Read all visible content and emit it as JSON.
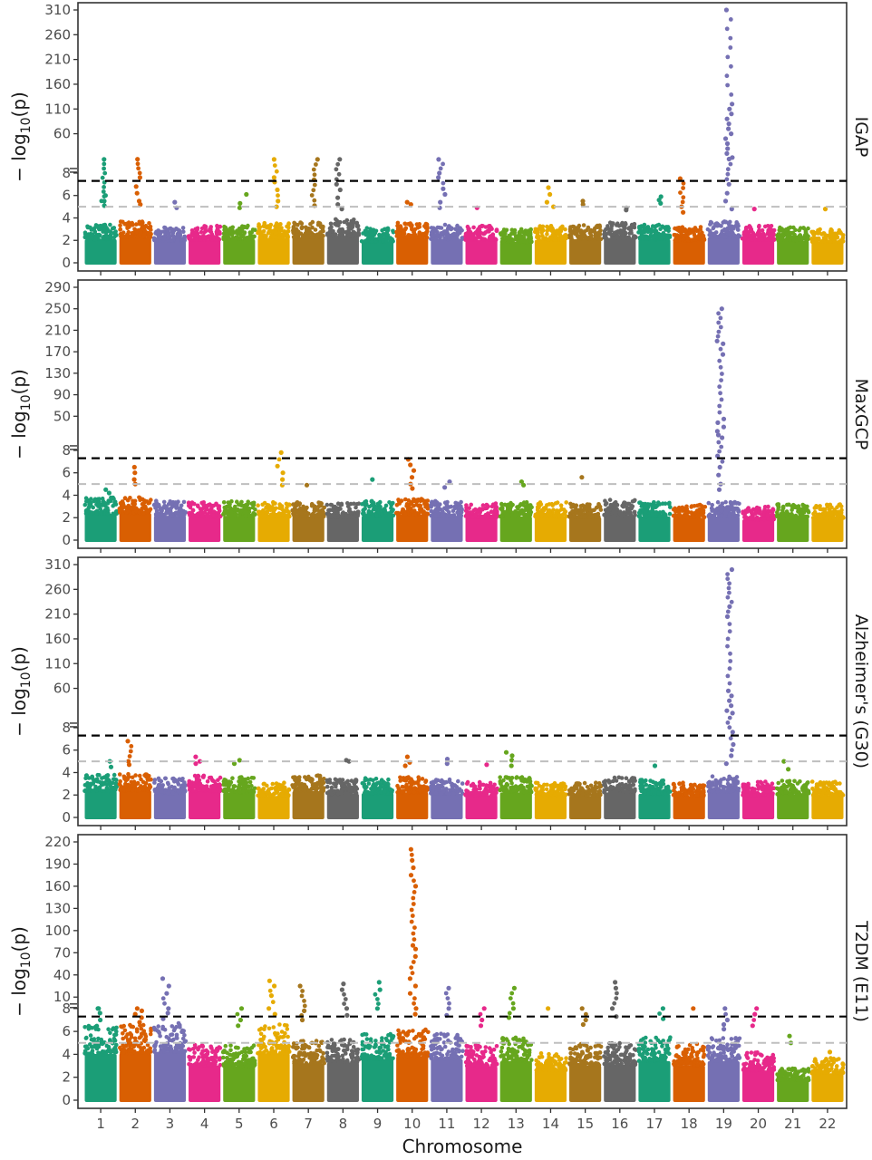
{
  "chart_data": {
    "type": "scatter",
    "subtype": "manhattan",
    "xlabel": "Chromosome",
    "ylabel": "− log10(p)",
    "ylabel_parts": {
      "main": "− log",
      "sub": "10",
      "arg": "(p)"
    },
    "chromosomes": [
      "1",
      "2",
      "3",
      "4",
      "5",
      "6",
      "7",
      "8",
      "9",
      "10",
      "11",
      "12",
      "13",
      "14",
      "15",
      "16",
      "17",
      "18",
      "19",
      "20",
      "21",
      "22"
    ],
    "chromosome_colors": [
      "#1b9e77",
      "#d95f02",
      "#7570b3",
      "#e7298a",
      "#66a61e",
      "#e6ab02",
      "#a6761d",
      "#666666"
    ],
    "genome_wide_threshold": 7.3,
    "suggestive_threshold": 5,
    "y_axis_break": 8,
    "panels": [
      {
        "name": "IGAP",
        "ticks_lower": [
          0,
          2,
          4,
          6,
          8
        ],
        "ticks_upper": [
          60,
          110,
          160,
          210,
          260,
          310
        ],
        "upper_range": [
          10,
          310
        ],
        "baseline_max": [
          3.4,
          3.7,
          3.2,
          3.3,
          3.4,
          3.6,
          3.7,
          3.9,
          3.1,
          3.6,
          3.4,
          3.3,
          3.0,
          3.3,
          3.4,
          3.6,
          3.4,
          3.2,
          3.7,
          3.3,
          3.2,
          3.0
        ],
        "peaks": [
          {
            "chr": 1,
            "values": [
              6.0,
              5.5,
              5.1,
              8.3
            ]
          },
          {
            "chr": 2,
            "values": [
              8.5,
              7.6,
              6.8,
              6.2,
              5.5,
              5.2
            ]
          },
          {
            "chr": 3,
            "values": [
              5.4,
              4.9
            ]
          },
          {
            "chr": 5,
            "values": [
              6.1,
              5.3,
              4.9
            ]
          },
          {
            "chr": 6,
            "values": [
              8.1,
              7.6,
              7.2,
              6.5,
              5.5,
              5.0
            ]
          },
          {
            "chr": 7,
            "values": [
              8.2,
              7.4,
              5.1
            ]
          },
          {
            "chr": 8,
            "values": [
              8.4,
              7.0,
              6.5,
              5.8,
              5.2,
              4.8
            ]
          },
          {
            "chr": 10,
            "values": [
              5.4,
              5.2
            ]
          },
          {
            "chr": 11,
            "values": [
              8.2,
              8.0,
              7.6,
              6.6,
              6.1,
              5.4,
              4.9
            ]
          },
          {
            "chr": 12,
            "values": [
              4.9
            ]
          },
          {
            "chr": 14,
            "values": [
              6.7,
              6.1,
              5.4,
              5.0
            ]
          },
          {
            "chr": 15,
            "values": [
              5.5,
              5.2
            ]
          },
          {
            "chr": 16,
            "values": [
              4.9,
              4.7
            ]
          },
          {
            "chr": 17,
            "values": [
              5.6,
              5.3,
              5.9
            ]
          },
          {
            "chr": 18,
            "values": [
              7.5,
              5.0,
              4.5
            ]
          },
          {
            "chr": 19,
            "values": [
              310,
              120,
              110,
              100,
              90,
              80,
              70,
              60,
              50,
              40,
              30,
              20,
              12,
              8.8,
              7.0,
              6.2,
              5.5,
              4.8
            ]
          },
          {
            "chr": 20,
            "values": [
              4.8
            ]
          },
          {
            "chr": 22,
            "values": [
              4.8
            ]
          }
        ]
      },
      {
        "name": "MaxGCP",
        "ticks_lower": [
          0,
          2,
          4,
          6,
          8
        ],
        "ticks_upper": [
          50,
          90,
          130,
          170,
          210,
          250,
          290
        ],
        "upper_range": [
          10,
          290
        ],
        "baseline_max": [
          3.8,
          3.9,
          3.5,
          3.4,
          3.5,
          3.4,
          3.4,
          3.3,
          3.5,
          3.7,
          3.5,
          3.3,
          3.4,
          3.4,
          3.3,
          3.6,
          3.4,
          3.2,
          3.4,
          3.0,
          3.2,
          3.2
        ],
        "peaks": [
          {
            "chr": 1,
            "values": [
              4.5,
              4.2
            ]
          },
          {
            "chr": 2,
            "values": [
              6.5,
              6.0,
              5.4,
              5.0
            ]
          },
          {
            "chr": 6,
            "values": [
              7.8,
              6.6,
              6.0,
              5.4,
              4.9
            ]
          },
          {
            "chr": 7,
            "values": [
              4.9
            ]
          },
          {
            "chr": 9,
            "values": [
              5.4
            ]
          },
          {
            "chr": 10,
            "values": [
              7.2,
              6.7,
              6.2,
              5.6,
              5.0,
              4.6
            ]
          },
          {
            "chr": 11,
            "values": [
              5.2,
              4.7
            ]
          },
          {
            "chr": 13,
            "values": [
              5.2,
              4.9
            ]
          },
          {
            "chr": 15,
            "values": [
              5.6
            ]
          },
          {
            "chr": 19,
            "values": [
              250,
              190,
              185,
              165,
              45,
              38,
              30,
              22,
              15,
              10,
              7.5,
              6.5,
              5.8,
              5.0,
              4.5
            ]
          }
        ]
      },
      {
        "name": "Alzheimer's (G30)",
        "ticks_lower": [
          0,
          2,
          4,
          6,
          8
        ],
        "ticks_upper": [
          60,
          110,
          160,
          210,
          260,
          310
        ],
        "upper_range": [
          10,
          310
        ],
        "baseline_max": [
          3.8,
          3.9,
          3.5,
          3.8,
          3.6,
          3.1,
          3.8,
          3.4,
          3.5,
          3.6,
          3.4,
          3.2,
          3.6,
          3.2,
          3.1,
          3.6,
          3.4,
          3.1,
          3.7,
          3.2,
          3.3,
          3.2
        ],
        "peaks": [
          {
            "chr": 1,
            "values": [
              5.0,
              4.5
            ]
          },
          {
            "chr": 2,
            "values": [
              6.8,
              5.0,
              4.7
            ]
          },
          {
            "chr": 4,
            "values": [
              5.4,
              5.0,
              4.8
            ]
          },
          {
            "chr": 5,
            "values": [
              5.1,
              4.8
            ]
          },
          {
            "chr": 8,
            "values": [
              5.1,
              5.0
            ]
          },
          {
            "chr": 10,
            "values": [
              5.4,
              4.9,
              4.6
            ]
          },
          {
            "chr": 11,
            "values": [
              5.2,
              4.8
            ]
          },
          {
            "chr": 12,
            "values": [
              4.7
            ]
          },
          {
            "chr": 13,
            "values": [
              5.8,
              5.5,
              5.1,
              4.6
            ]
          },
          {
            "chr": 17,
            "values": [
              4.6
            ]
          },
          {
            "chr": 19,
            "values": [
              300,
              225,
              205,
              55,
              45,
              35,
              25,
              15,
              10,
              7.6,
              6.5,
              5.5,
              4.8
            ]
          },
          {
            "chr": 21,
            "values": [
              5.0,
              4.3
            ]
          }
        ]
      },
      {
        "name": "T2DM (E11)",
        "ticks_lower": [
          0,
          2,
          4,
          6,
          8
        ],
        "ticks_upper": [
          10,
          40,
          70,
          100,
          130,
          160,
          190,
          220
        ],
        "upper_range": [
          10,
          220
        ],
        "baseline_max": [
          6.5,
          6.6,
          6.8,
          4.9,
          4.8,
          6.6,
          5.2,
          5.3,
          5.8,
          6.2,
          5.8,
          4.8,
          5.5,
          4.2,
          4.9,
          5.0,
          5.5,
          4.9,
          5.5,
          4.2,
          2.8,
          3.8
        ],
        "peaks": [
          {
            "chr": 1,
            "values": [
              8.0,
              8.0,
              7.6,
              7.0
            ]
          },
          {
            "chr": 2,
            "values": [
              8.0,
              7.8,
              7.5,
              7.2,
              6.8
            ]
          },
          {
            "chr": 3,
            "values": [
              35,
              25,
              15,
              8.0,
              7.6,
              7.1
            ]
          },
          {
            "chr": 5,
            "values": [
              8.0,
              7.0,
              6.5
            ]
          },
          {
            "chr": 6,
            "values": [
              32,
              25,
              12,
              8.0,
              7.5
            ]
          },
          {
            "chr": 7,
            "values": [
              25,
              7.8,
              7.0
            ]
          },
          {
            "chr": 8,
            "values": [
              28,
              20,
              8.0,
              7.4
            ]
          },
          {
            "chr": 9,
            "values": [
              30,
              20,
              8.0
            ]
          },
          {
            "chr": 10,
            "values": [
              210,
              195,
              185,
              175,
              160,
              80,
              75,
              65,
              35,
              25,
              15,
              8.0,
              7.5
            ]
          },
          {
            "chr": 11,
            "values": [
              22,
              8.0,
              7.4
            ]
          },
          {
            "chr": 12,
            "values": [
              8.0,
              7.0,
              6.5
            ]
          },
          {
            "chr": 13,
            "values": [
              22,
              8.0,
              7.2
            ]
          },
          {
            "chr": 14,
            "values": [
              8.0
            ]
          },
          {
            "chr": 15,
            "values": [
              8.0,
              7.0,
              6.6
            ]
          },
          {
            "chr": 16,
            "values": [
              30,
              22,
              8.0,
              7.3
            ]
          },
          {
            "chr": 17,
            "values": [
              8.0,
              7.1
            ]
          },
          {
            "chr": 18,
            "values": [
              8.0
            ]
          },
          {
            "chr": 19,
            "values": [
              8.0,
              7.0,
              6.6,
              6.2
            ]
          },
          {
            "chr": 20,
            "values": [
              8.0,
              7.5,
              6.5
            ]
          },
          {
            "chr": 21,
            "values": [
              5.6,
              5.0
            ]
          },
          {
            "chr": 22,
            "values": [
              4.2
            ]
          }
        ]
      }
    ]
  }
}
